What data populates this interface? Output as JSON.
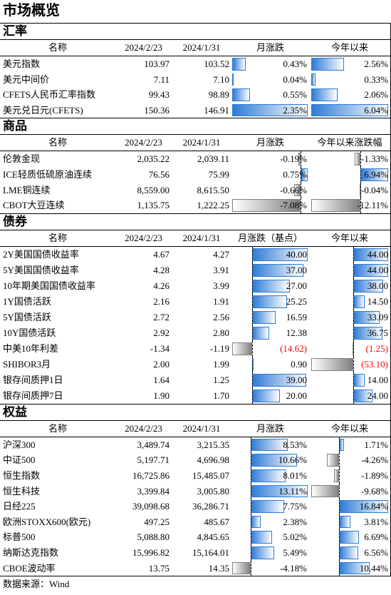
{
  "title": "市场概览",
  "sections": [
    {
      "label": "汇率",
      "headers": {
        "name": "名称",
        "d1": "2024/2/23",
        "d2": "2024/1/31",
        "mom": "月涨跌",
        "ytd": "今年以来"
      },
      "rows": [
        {
          "name": "美元指数",
          "d1": "103.97",
          "d2": "103.52",
          "mom": "0.43%",
          "ytd": "2.56%"
        },
        {
          "name": "美元中间价",
          "d1": "7.11",
          "d2": "7.10",
          "mom": "0.04%",
          "ytd": "0.33%"
        },
        {
          "name": "CFETS人民币汇率指数",
          "d1": "99.43",
          "d2": "98.89",
          "mom": "0.55%",
          "ytd": "2.06%"
        },
        {
          "name": "美元兑日元(CFETS)",
          "d1": "150.36",
          "d2": "146.91",
          "mom": "2.35%",
          "ytd": "6.04%"
        }
      ]
    },
    {
      "label": "商品",
      "headers": {
        "name": "名称",
        "d1": "2024/2/23",
        "d2": "2024/1/31",
        "mom": "月涨跌",
        "ytd": "今年以来涨跌幅"
      },
      "rows": [
        {
          "name": "伦敦金现",
          "d1": "2,035.22",
          "d2": "2,039.11",
          "mom": "-0.19%",
          "ytd": "-1.33%"
        },
        {
          "name": "ICE轻质低硫原油连续",
          "d1": "76.56",
          "d2": "75.99",
          "mom": "0.75%",
          "ytd": "6.94%"
        },
        {
          "name": "LME铜连续",
          "d1": "8,559.00",
          "d2": "8,615.50",
          "mom": "-0.66%",
          "ytd": "-0.04%"
        },
        {
          "name": "CBOT大豆连续",
          "d1": "1,135.75",
          "d2": "1,222.25",
          "mom": "-7.08%",
          "ytd": "-12.11%"
        }
      ]
    },
    {
      "label": "债券",
      "headers": {
        "name": "名称",
        "d1": "2024/2/23",
        "d2": "2024/1/31",
        "mom": "月涨跌（基点）",
        "ytd": "今年以来"
      },
      "rows": [
        {
          "name": "2Y美国国债收益率",
          "d1": "4.67",
          "d2": "4.27",
          "mom": "40.00",
          "ytd": "44.00"
        },
        {
          "name": "5Y美国国债收益率",
          "d1": "4.28",
          "d2": "3.91",
          "mom": "37.00",
          "ytd": "44.00"
        },
        {
          "name": "10年期美国国债收益率",
          "d1": "4.26",
          "d2": "3.99",
          "mom": "27.00",
          "ytd": "38.00"
        },
        {
          "name": "1Y国债活跃",
          "d1": "2.16",
          "d2": "1.91",
          "mom": "25.25",
          "ytd": "14.50"
        },
        {
          "name": "5Y国债活跃",
          "d1": "2.72",
          "d2": "2.56",
          "mom": "16.59",
          "ytd": "33.09"
        },
        {
          "name": "10Y国债活跃",
          "d1": "2.92",
          "d2": "2.80",
          "mom": "12.38",
          "ytd": "36.75"
        },
        {
          "name": "中美10年利差",
          "d1": "-1.34",
          "d2": "-1.19",
          "mom": "(14.62)",
          "ytd": "(1.25)"
        },
        {
          "name": "SHIBOR3月",
          "d1": "2.00",
          "d2": "1.99",
          "mom": "0.90",
          "ytd": "(53.10)"
        },
        {
          "name": "银存间质押1日",
          "d1": "1.64",
          "d2": "1.25",
          "mom": "39.00",
          "ytd": "14.00"
        },
        {
          "name": "银存间质押7日",
          "d1": "1.90",
          "d2": "1.70",
          "mom": "20.00",
          "ytd": "24.00"
        }
      ]
    },
    {
      "label": "权益",
      "headers": {
        "name": "名称",
        "d1": "2024/2/23",
        "d2": "2024/1/31",
        "mom": "月涨跌",
        "ytd": "今年以来"
      },
      "rows": [
        {
          "name": "沪深300",
          "d1": "3,489.74",
          "d2": "3,215.35",
          "mom": "8.53%",
          "ytd": "1.71%"
        },
        {
          "name": "中证500",
          "d1": "5,197.71",
          "d2": "4,696.98",
          "mom": "10.66%",
          "ytd": "-4.26%"
        },
        {
          "name": "恒生指数",
          "d1": "16,725.86",
          "d2": "15,485.07",
          "mom": "8.01%",
          "ytd": "-1.89%"
        },
        {
          "name": "恒生科技",
          "d1": "3,399.84",
          "d2": "3,005.80",
          "mom": "13.11%",
          "ytd": "-9.68%"
        },
        {
          "name": "日经225",
          "d1": "39,098.68",
          "d2": "36,286.71",
          "mom": "7.75%",
          "ytd": "16.84%"
        },
        {
          "name": "欧洲STOXX600(欧元)",
          "d1": "497.25",
          "d2": "485.67",
          "mom": "2.38%",
          "ytd": "3.81%"
        },
        {
          "name": "标普500",
          "d1": "5,088.80",
          "d2": "4,845.65",
          "mom": "5.02%",
          "ytd": "6.69%"
        },
        {
          "name": "纳斯达克指数",
          "d1": "15,996.82",
          "d2": "15,164.01",
          "mom": "5.49%",
          "ytd": "6.56%"
        },
        {
          "name": "CBOE波动率",
          "d1": "13.75",
          "d2": "14.35",
          "mom": "-4.18%",
          "ytd": "10.44%"
        }
      ]
    }
  ],
  "source": "数据来源：Wind",
  "colors": {
    "positive_bar": "#2e7bd6",
    "negative_bar": "#808080",
    "negative_text": "#ff0000"
  }
}
